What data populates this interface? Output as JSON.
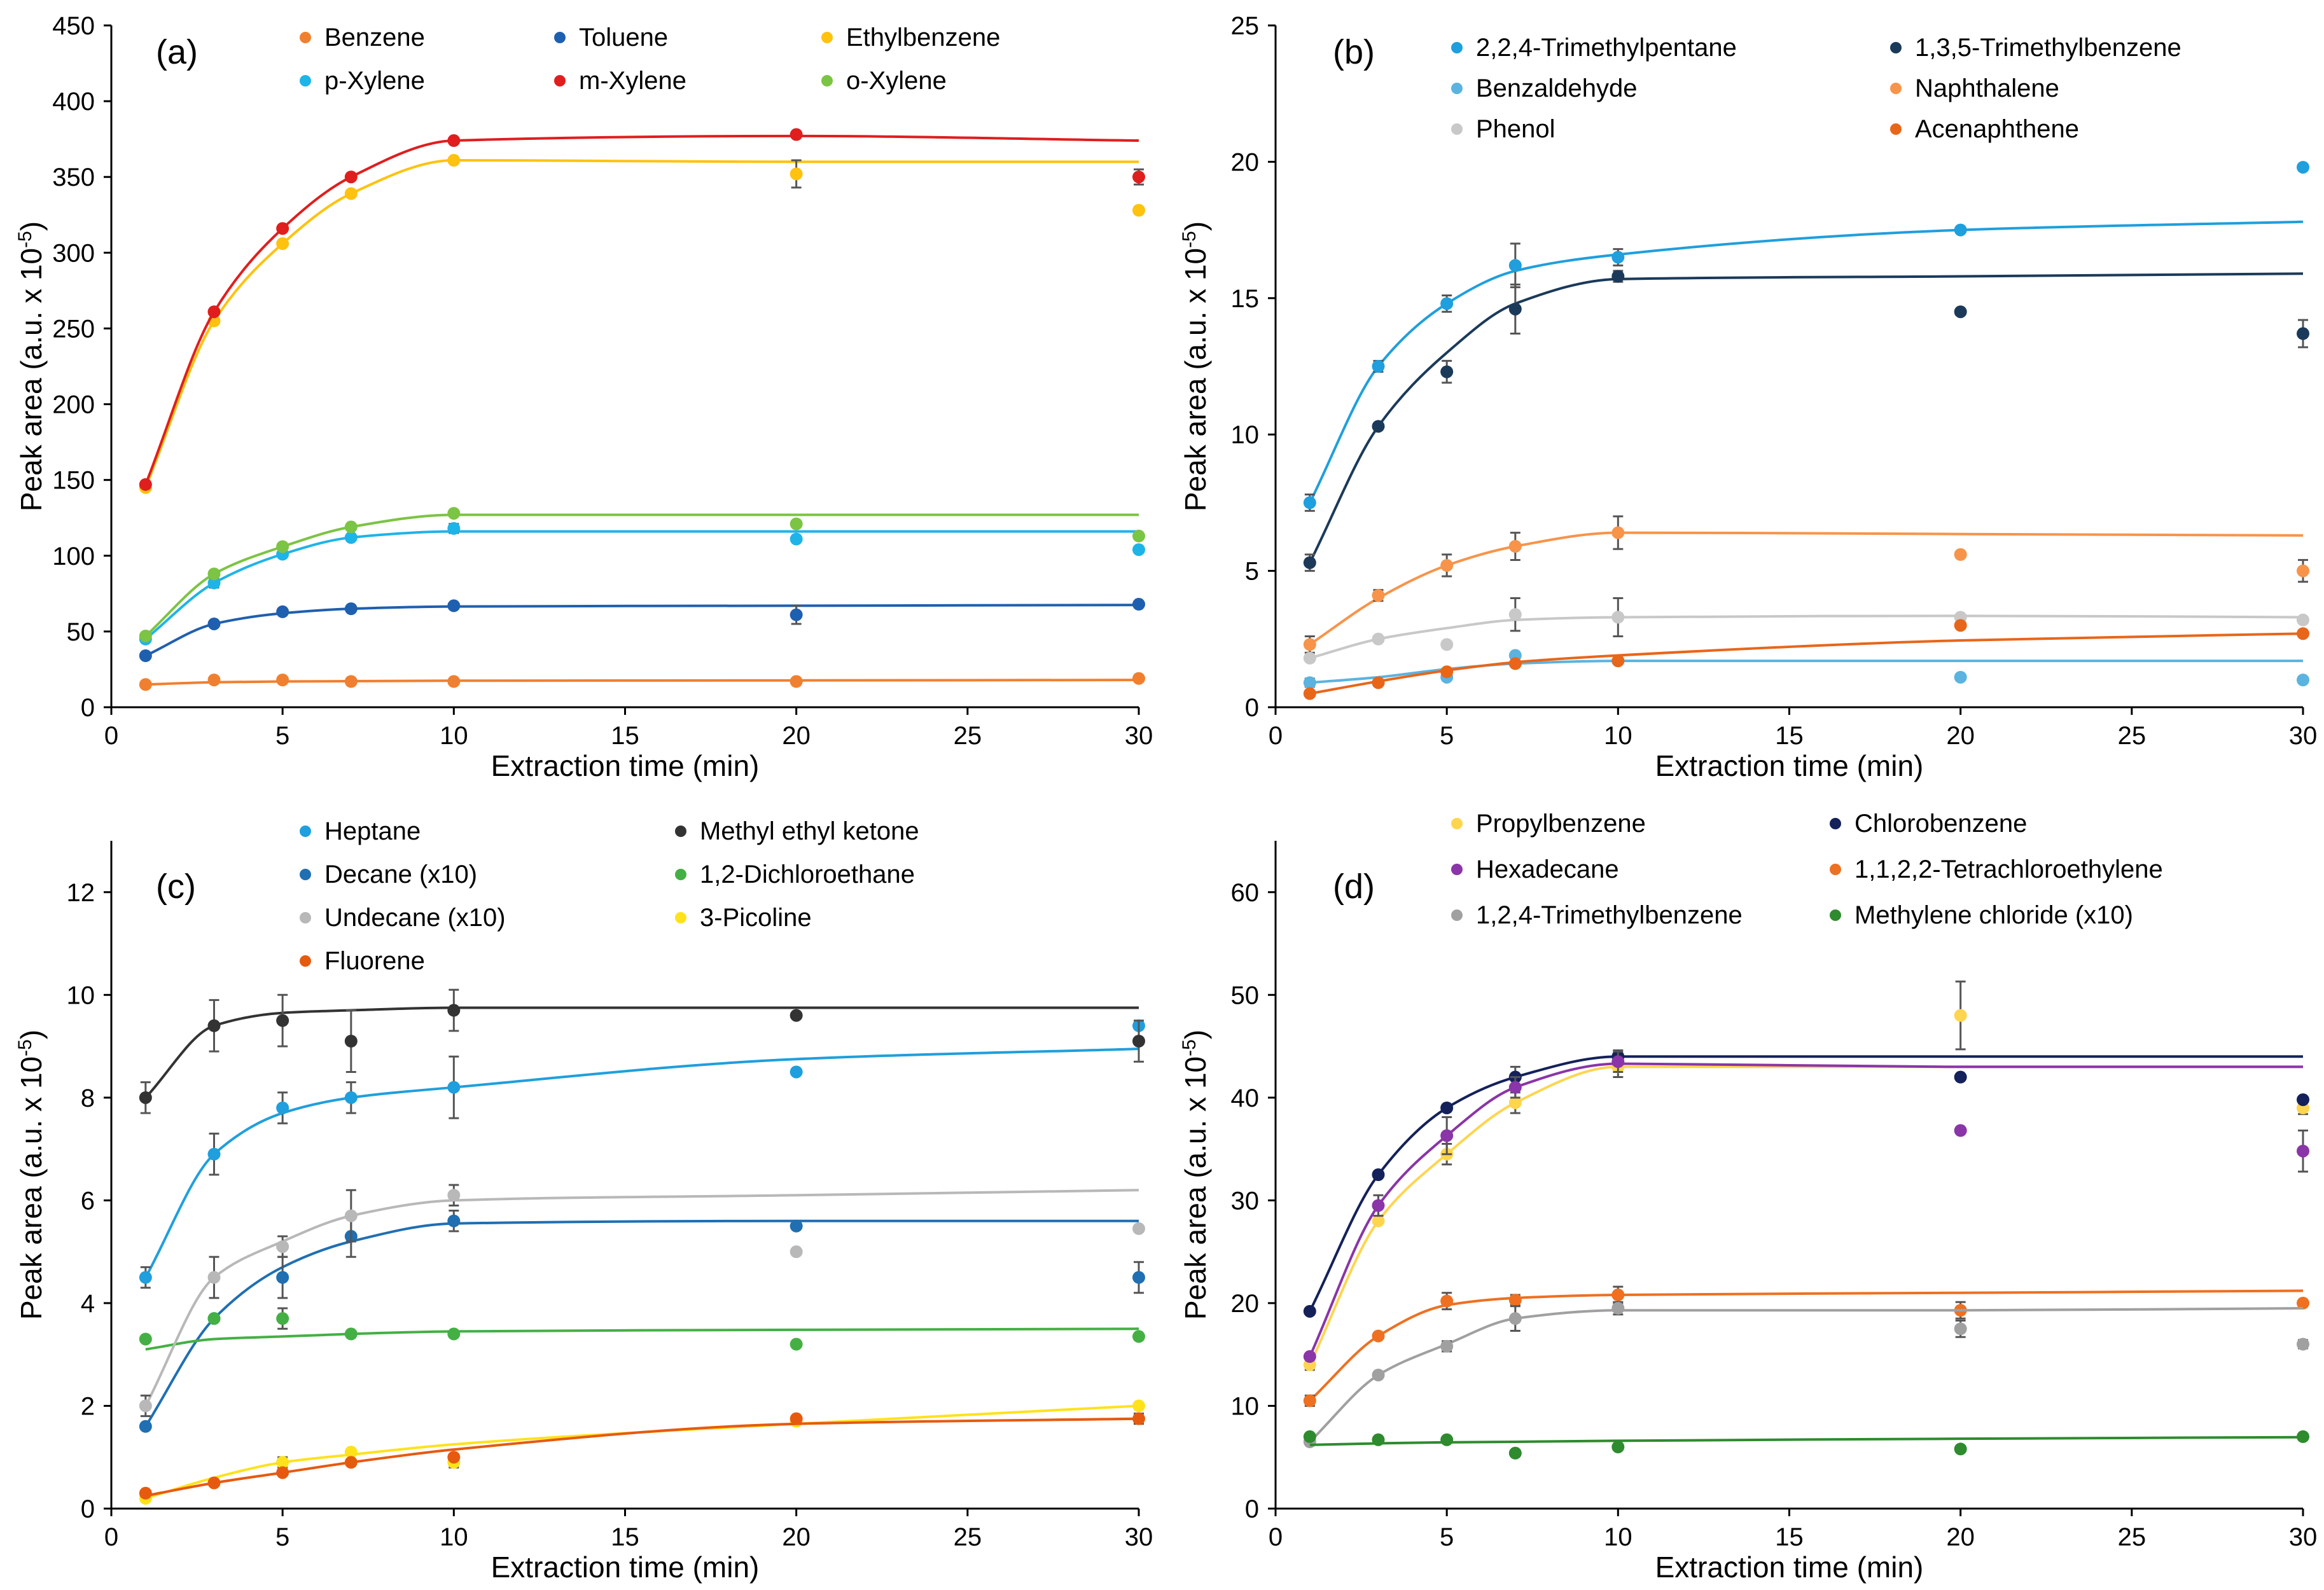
{
  "chart_data": [
    {
      "type": "scatter",
      "panel_label": "(a)",
      "xlabel": "Extraction time (min)",
      "ylabel_main": "Peak area (a.u. x 10",
      "ylabel_sup": "-5",
      "ylabel_end": ")",
      "xlim": [
        0,
        30
      ],
      "ylim": [
        0,
        450
      ],
      "xticks": [
        0,
        5,
        10,
        15,
        20,
        25,
        30
      ],
      "yticks": [
        0,
        50,
        100,
        150,
        200,
        250,
        300,
        350,
        400,
        450
      ],
      "legend_cols": 3,
      "x": [
        1,
        3,
        5,
        7,
        10,
        20,
        30
      ],
      "series": [
        {
          "name": "Benzene",
          "color": "#F08030",
          "values": [
            15,
            18,
            18,
            17,
            17,
            17,
            19
          ],
          "fit": [
            15,
            16.5,
            17,
            17.2,
            17.5,
            17.7,
            18
          ],
          "errors": [
            0,
            0,
            0,
            0,
            0,
            0,
            0
          ]
        },
        {
          "name": "Toluene",
          "color": "#1F5FAF",
          "values": [
            34,
            55,
            63,
            65,
            67,
            61,
            68
          ],
          "fit": [
            34,
            55,
            62,
            65,
            66.5,
            67,
            67.5
          ],
          "errors": [
            0,
            0,
            0,
            0,
            0,
            6,
            0
          ]
        },
        {
          "name": "Ethylbenzene",
          "color": "#FFC20E",
          "values": [
            145,
            255,
            306,
            339,
            361,
            352,
            328
          ],
          "fit": [
            145,
            255,
            306,
            339,
            361,
            360,
            360
          ],
          "errors": [
            0,
            0,
            0,
            0,
            0,
            9,
            0
          ]
        },
        {
          "name": "p-Xylene",
          "color": "#1EB4E8",
          "values": [
            45,
            82,
            101,
            112,
            118,
            111,
            104
          ],
          "fit": [
            45,
            82,
            101,
            112,
            116,
            116,
            116
          ],
          "errors": [
            0,
            3,
            0,
            0,
            3,
            0,
            0
          ]
        },
        {
          "name": "m-Xylene",
          "color": "#E01E1E",
          "values": [
            147,
            261,
            316,
            350,
            374,
            378,
            350
          ],
          "fit": [
            147,
            261,
            316,
            350,
            374,
            377,
            374
          ],
          "errors": [
            0,
            0,
            0,
            0,
            0,
            0,
            5
          ]
        },
        {
          "name": "o-Xylene",
          "color": "#7CC443",
          "values": [
            47,
            88,
            106,
            119,
            128,
            121,
            113
          ],
          "fit": [
            47,
            88,
            106,
            119,
            127,
            127,
            127
          ],
          "errors": [
            0,
            0,
            0,
            0,
            0,
            0,
            0
          ]
        }
      ]
    },
    {
      "type": "scatter",
      "panel_label": "(b)",
      "xlabel": "Extraction time (min)",
      "ylabel_main": "Peak area (a.u. x 10",
      "ylabel_sup": "-5",
      "ylabel_end": ")",
      "xlim": [
        0,
        30
      ],
      "ylim": [
        0,
        25
      ],
      "xticks": [
        0,
        5,
        10,
        15,
        20,
        25,
        30
      ],
      "yticks": [
        0,
        5,
        10,
        15,
        20,
        25
      ],
      "legend_cols": 2,
      "x": [
        1,
        3,
        5,
        7,
        10,
        20,
        30
      ],
      "series": [
        {
          "name": "2,2,4-Trimethylpentane",
          "color": "#1F9FDD",
          "values": [
            7.5,
            12.5,
            14.8,
            16.2,
            16.5,
            17.5,
            19.8
          ],
          "fit": [
            7.5,
            12.5,
            14.8,
            16.0,
            16.6,
            17.5,
            17.8
          ],
          "errors": [
            0.3,
            0.2,
            0.3,
            0.8,
            0.3,
            0,
            0
          ]
        },
        {
          "name": "1,3,5-Trimethylbenzene",
          "color": "#1B3A5A",
          "values": [
            5.3,
            10.3,
            12.3,
            14.6,
            15.8,
            14.5,
            13.7
          ],
          "fit": [
            5.3,
            10.3,
            13.0,
            14.8,
            15.7,
            15.8,
            15.9
          ],
          "errors": [
            0.3,
            0,
            0.4,
            0.9,
            0.2,
            0,
            0.5
          ]
        },
        {
          "name": "Benzaldehyde",
          "color": "#5BB3E0",
          "values": [
            0.9,
            0.9,
            1.1,
            1.9,
            1.7,
            1.1,
            1.0
          ],
          "fit": [
            0.9,
            1.1,
            1.4,
            1.6,
            1.7,
            1.7,
            1.7
          ],
          "errors": [
            0.15,
            0,
            0,
            0,
            0,
            0.1,
            0
          ]
        },
        {
          "name": "Naphthalene",
          "color": "#F7944A",
          "values": [
            2.3,
            4.1,
            5.2,
            5.9,
            6.4,
            5.6,
            5.0
          ],
          "fit": [
            2.3,
            4.0,
            5.2,
            5.9,
            6.4,
            6.35,
            6.3
          ],
          "errors": [
            0.3,
            0.2,
            0.4,
            0.5,
            0.6,
            0,
            0.4
          ]
        },
        {
          "name": "Phenol",
          "color": "#C8C8C8",
          "values": [
            1.8,
            2.5,
            2.3,
            3.4,
            3.3,
            3.3,
            3.2
          ],
          "fit": [
            1.8,
            2.5,
            2.9,
            3.2,
            3.3,
            3.35,
            3.3
          ],
          "errors": [
            0,
            0,
            0,
            0.6,
            0.7,
            0,
            0
          ]
        },
        {
          "name": "Acenaphthene",
          "color": "#E8661A",
          "values": [
            0.5,
            0.9,
            1.3,
            1.6,
            1.7,
            3.0,
            2.7
          ],
          "fit": [
            0.5,
            0.95,
            1.35,
            1.65,
            1.9,
            2.45,
            2.7
          ],
          "errors": [
            0,
            0,
            0,
            0,
            0,
            0,
            0
          ]
        }
      ]
    },
    {
      "type": "scatter",
      "panel_label": "(c)",
      "xlabel": "Extraction time (min)",
      "ylabel_main": "Peak area (a.u. x 10",
      "ylabel_sup": "-5",
      "ylabel_end": ")",
      "xlim": [
        0,
        30
      ],
      "ylim": [
        0,
        13
      ],
      "xticks": [
        0,
        5,
        10,
        15,
        20,
        25,
        30
      ],
      "yticks": [
        0,
        2,
        4,
        6,
        8,
        10,
        12
      ],
      "legend_cols": 2,
      "x": [
        1,
        3,
        5,
        7,
        10,
        20,
        30
      ],
      "series": [
        {
          "name": "Heptane",
          "color": "#1F9FDD",
          "values": [
            4.5,
            6.9,
            7.8,
            8.0,
            8.2,
            8.5,
            9.4
          ],
          "fit": [
            4.5,
            6.9,
            7.7,
            8.0,
            8.2,
            8.75,
            8.95
          ],
          "errors": [
            0.2,
            0.4,
            0.3,
            0.3,
            0.6,
            0,
            0
          ]
        },
        {
          "name": "Methyl ethyl ketone",
          "color": "#333333",
          "values": [
            8.0,
            9.4,
            9.5,
            9.1,
            9.7,
            9.6,
            9.1
          ],
          "fit": [
            8.0,
            9.4,
            9.65,
            9.7,
            9.75,
            9.75,
            9.75
          ],
          "errors": [
            0.3,
            0.5,
            0.5,
            0.6,
            0.4,
            0,
            0.4
          ]
        },
        {
          "name": "Decane (x10)",
          "color": "#1F6FB2",
          "values": [
            1.6,
            3.7,
            4.5,
            5.3,
            5.6,
            5.5,
            4.5
          ],
          "fit": [
            1.6,
            3.7,
            4.7,
            5.2,
            5.55,
            5.6,
            5.6
          ],
          "errors": [
            0,
            0,
            0.4,
            0.4,
            0.2,
            0,
            0.3
          ]
        },
        {
          "name": "1,2-Dichloroethane",
          "color": "#44B044",
          "values": [
            3.3,
            3.7,
            3.7,
            3.4,
            3.4,
            3.2,
            3.35
          ],
          "fit": [
            3.1,
            3.3,
            3.35,
            3.4,
            3.45,
            3.48,
            3.5
          ],
          "errors": [
            0,
            0,
            0.2,
            0,
            0,
            0,
            0
          ]
        },
        {
          "name": "Undecane (x10)",
          "color": "#B8B8B8",
          "values": [
            2.0,
            4.5,
            5.1,
            5.7,
            6.1,
            5.0,
            5.45
          ],
          "fit": [
            2.0,
            4.5,
            5.2,
            5.7,
            6.0,
            6.1,
            6.2
          ],
          "errors": [
            0.2,
            0.4,
            0.2,
            0.5,
            0.2,
            0,
            0
          ]
        },
        {
          "name": "3-Picoline",
          "color": "#FFE21A",
          "values": [
            0.2,
            0.5,
            0.9,
            1.1,
            0.9,
            1.7,
            2.0
          ],
          "fit": [
            0.2,
            0.6,
            0.9,
            1.05,
            1.25,
            1.65,
            2.0
          ],
          "errors": [
            0,
            0,
            0.1,
            0,
            0.1,
            0,
            0
          ]
        },
        {
          "name": "Fluorene",
          "color": "#E65A10",
          "values": [
            0.3,
            0.5,
            0.7,
            0.9,
            1.0,
            1.75,
            1.75
          ],
          "fit": [
            0.25,
            0.5,
            0.7,
            0.9,
            1.15,
            1.65,
            1.75
          ],
          "errors": [
            0,
            0,
            0,
            0,
            0,
            0,
            0.1
          ]
        }
      ]
    },
    {
      "type": "scatter",
      "panel_label": "(d)",
      "xlabel": "Extraction time (min)",
      "ylabel_main": "Peak area (a.u. x 10",
      "ylabel_sup": "-5",
      "ylabel_end": ")",
      "xlim": [
        0,
        30
      ],
      "ylim": [
        0,
        65
      ],
      "xticks": [
        0,
        5,
        10,
        15,
        20,
        25,
        30
      ],
      "yticks": [
        0,
        10,
        20,
        30,
        40,
        50,
        60
      ],
      "legend_cols": 2,
      "x": [
        1,
        3,
        5,
        7,
        10,
        20,
        30
      ],
      "series": [
        {
          "name": "Propylbenzene",
          "color": "#FFD54F",
          "values": [
            14.0,
            28.0,
            34.5,
            39.5,
            43.0,
            48.0,
            39.0
          ],
          "fit": [
            14.0,
            28.0,
            34.5,
            39.5,
            43.0,
            43.0,
            43.0
          ],
          "errors": [
            0.5,
            0,
            1.0,
            1.0,
            1.0,
            3.3,
            0.6
          ]
        },
        {
          "name": "Chlorobenzene",
          "color": "#14215A",
          "values": [
            19.2,
            32.5,
            39.0,
            42.0,
            44.0,
            42.0,
            39.8
          ],
          "fit": [
            19.2,
            32.5,
            39.0,
            42.0,
            44.0,
            44.0,
            44.0
          ],
          "errors": [
            0,
            0,
            0,
            1.0,
            0.6,
            0,
            0
          ]
        },
        {
          "name": "Hexadecane",
          "color": "#8A35A8",
          "values": [
            14.8,
            29.5,
            36.3,
            41.0,
            43.5,
            36.8,
            34.8
          ],
          "fit": [
            14.8,
            29.5,
            36.3,
            41.0,
            43.3,
            43.0,
            43.0
          ],
          "errors": [
            0,
            1.0,
            1.8,
            1.0,
            1.0,
            0,
            2.0
          ]
        },
        {
          "name": "1,1,2,2-Tetrachloroethylene",
          "color": "#EE7021",
          "values": [
            10.5,
            16.8,
            20.2,
            20.3,
            20.8,
            19.3,
            20.0
          ],
          "fit": [
            10.5,
            16.8,
            19.8,
            20.5,
            20.8,
            21.0,
            21.2
          ],
          "errors": [
            0.5,
            0,
            0.8,
            0.5,
            0.8,
            0.8,
            0
          ]
        },
        {
          "name": "1,2,4-Trimethylbenzene",
          "color": "#A0A0A0",
          "values": [
            6.5,
            13.0,
            15.8,
            18.5,
            19.5,
            17.5,
            16.0
          ],
          "fit": [
            6.5,
            13.0,
            16.0,
            18.5,
            19.3,
            19.3,
            19.5
          ],
          "errors": [
            0,
            0,
            0.5,
            1.2,
            0.6,
            0.8,
            0.4
          ]
        },
        {
          "name": "Methylene chloride (x10)",
          "color": "#2E8B2E",
          "values": [
            7.0,
            6.7,
            6.7,
            5.4,
            6.0,
            5.8,
            7.0
          ],
          "fit": [
            6.2,
            6.35,
            6.45,
            6.5,
            6.6,
            6.8,
            6.95
          ],
          "errors": [
            0,
            0,
            0,
            0,
            0,
            0,
            0
          ]
        }
      ]
    }
  ]
}
